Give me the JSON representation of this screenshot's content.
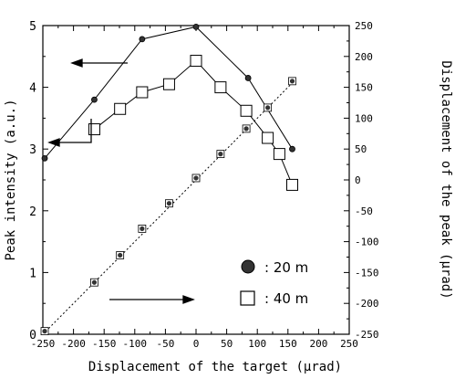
{
  "chart_data": {
    "type": "scatter",
    "x_axis": {
      "label": "Displacement of the target  (µrad)",
      "range": [
        -250,
        250
      ],
      "ticks": [
        -250,
        -200,
        -150,
        -100,
        -50,
        0,
        50,
        100,
        150,
        200,
        250
      ]
    },
    "y_axis_left": {
      "label": "Peak intensity  (a.u.)",
      "range": [
        0,
        5
      ],
      "ticks": [
        0,
        1,
        2,
        3,
        4,
        5
      ]
    },
    "y_axis_right": {
      "label": "Displacement of the peak  (µrad)",
      "range": [
        -250,
        250
      ],
      "ticks": [
        -250,
        -200,
        -150,
        -100,
        -50,
        0,
        50,
        100,
        150,
        200,
        250
      ]
    },
    "series": [
      {
        "name": ": 20 m",
        "marker": "filled-circle",
        "axis": "left",
        "line": "solid",
        "x": [
          -247,
          -166,
          -88,
          0,
          85,
          157
        ],
        "y": [
          2.85,
          3.8,
          4.78,
          4.98,
          4.15,
          3.0
        ]
      },
      {
        "name": ": 40 m",
        "marker": "open-square",
        "axis": "left",
        "line": "solid",
        "x": [
          -166,
          -124,
          -88,
          -44,
          0,
          40,
          82,
          117,
          136,
          157
        ],
        "y": [
          3.32,
          3.65,
          3.92,
          4.05,
          4.43,
          4.0,
          3.62,
          3.18,
          2.92,
          2.42
        ]
      },
      {
        "name": "",
        "marker": "filled-circle-in-square",
        "axis": "right",
        "line": "dotted",
        "x": [
          -247,
          -166,
          -124,
          -88,
          -44,
          0,
          40,
          82,
          117,
          157
        ],
        "y": [
          -245,
          -166,
          -122,
          -79,
          -38,
          3,
          42,
          83,
          117,
          160
        ]
      }
    ],
    "legend": {
      "placement": "bottom-right",
      "entries": [
        {
          "marker": "filled-circle",
          "label": ": 20 m"
        },
        {
          "marker": "open-square",
          "label": ": 40 m"
        }
      ]
    },
    "annotations": [
      {
        "type": "arrow",
        "direction": "left",
        "meaning": "20 m series uses left axis"
      },
      {
        "type": "bent-arrow",
        "direction": "left",
        "meaning": "40 m series uses left axis"
      },
      {
        "type": "arrow",
        "direction": "right",
        "meaning": "dotted series uses right axis"
      }
    ],
    "grid": false
  }
}
